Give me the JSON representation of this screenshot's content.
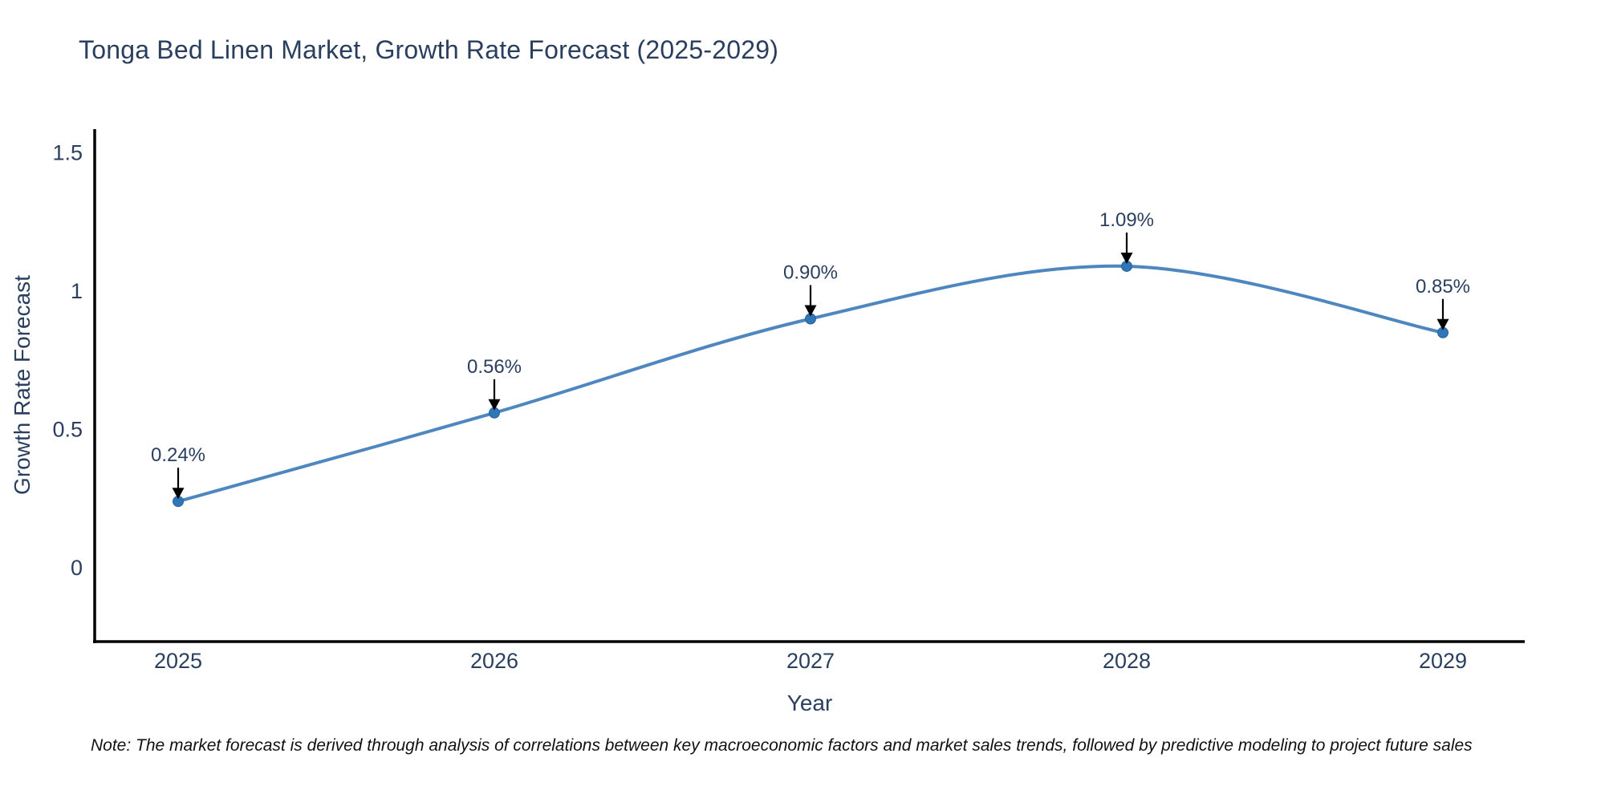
{
  "title": "Tonga Bed Linen Market, Growth Rate Forecast (2025-2029)",
  "note": "Note: The market forecast is derived through analysis of correlations between key macroeconomic factors and market sales trends, followed by predictive modeling to project future sales",
  "chart_data": {
    "type": "line",
    "line_shape": "spline",
    "title": "Tonga Bed Linen Market, Growth Rate Forecast (2025-2029)",
    "xlabel": "Year",
    "ylabel": "Growth Rate Forecast",
    "categories": [
      "2025",
      "2026",
      "2027",
      "2028",
      "2029"
    ],
    "series": [
      {
        "name": "Growth Rate Forecast",
        "values": [
          0.24,
          0.56,
          0.9,
          1.09,
          0.85
        ],
        "point_labels": [
          "0.24%",
          "0.56%",
          "0.90%",
          "1.09%",
          "0.85%"
        ]
      }
    ],
    "ytick_labels": [
      "0",
      "0.5",
      "1",
      "1.5"
    ],
    "ytick_values": [
      0,
      0.5,
      1,
      1.5
    ],
    "ylim": [
      -0.27,
      1.59
    ],
    "grid": false,
    "legend": false,
    "annotations_have_arrows": true,
    "colors": {
      "line": "#4e87bf",
      "marker": "#2f76b6",
      "marker_edge": "#27659e",
      "arrow": "#000000",
      "axis": "#000000",
      "tick_text": "#2a3f5f",
      "annotation_text": "#2a3f5f",
      "title_text": "#2a3f5f",
      "note_text": "#111111"
    }
  }
}
